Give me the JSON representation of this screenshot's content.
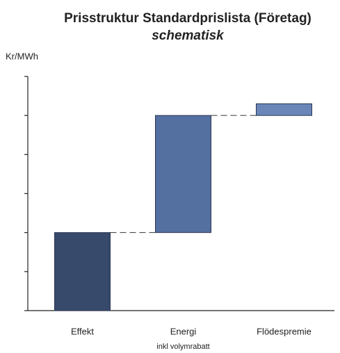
{
  "chart_data": {
    "type": "waterfall",
    "title": "Prisstruktur Standardprislista (Företag)",
    "subtitle": "schematisk",
    "y_label": "Kr/MWh",
    "categories": [
      "Effekt",
      "Energi",
      "Flödespremie"
    ],
    "category_notes": [
      null,
      "inkl volymrabatt",
      null
    ],
    "values": [
      2,
      3,
      0.3
    ],
    "colors": [
      "#374a6b",
      "#5470a0",
      "#6a86b8"
    ],
    "ylim": [
      0,
      6
    ],
    "yticks": [
      0,
      1,
      2,
      3,
      4,
      5,
      6
    ]
  }
}
